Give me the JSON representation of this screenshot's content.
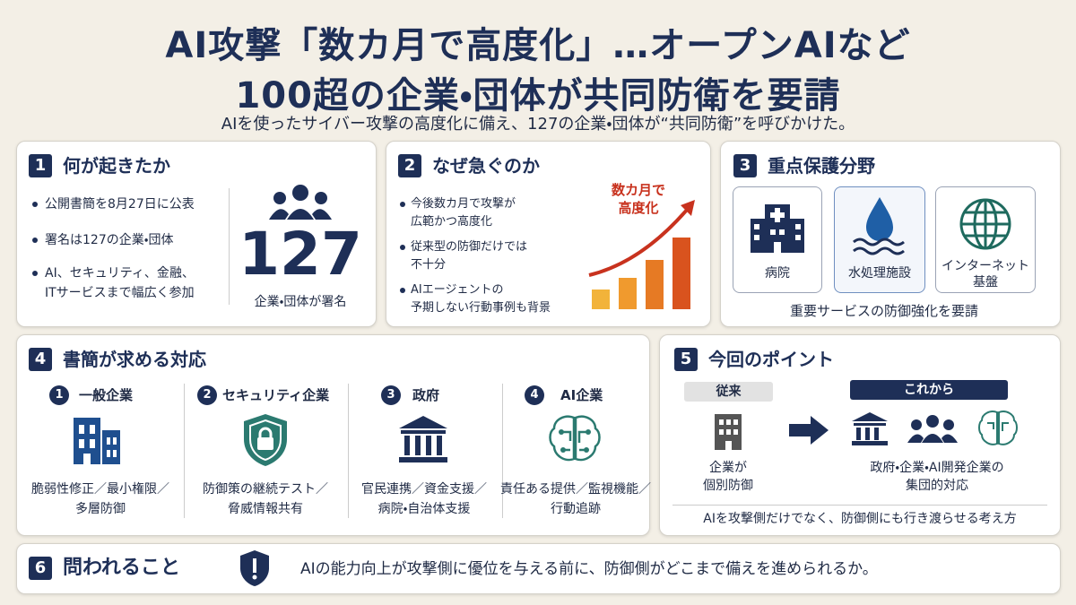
{
  "header": {
    "title": [
      "AI攻撃「数カ月で高度化」…オープンAIなど",
      "100超の企業・団体が共同防衛を要請"
    ],
    "subtitle": "AIを使ったサイバー攻撃の高度化に備え、127の企業・団体が“共同防衛”を呼びかけた。"
  },
  "sections": [
    {
      "number": "1",
      "heading": "何が起きたか",
      "bullets": [
        [
          "公開書簡を8月27日に公表"
        ],
        [
          "署名は127の企業・団体"
        ],
        [
          "AI、セキュリティ、金融、",
          "ITサービスまで幅広く参加"
        ]
      ],
      "stat": "127",
      "stat_caption": "企業・団体が署名"
    },
    {
      "number": "2",
      "heading": "なぜ急ぐのか",
      "bullets": [
        [
          "今後数カ月で攻撃が",
          "広範かつ高度化"
        ],
        [
          "従来型の防御だけでは",
          "不十分"
        ],
        [
          "AIエージェントの",
          "予期しない行動事例も背景"
        ]
      ],
      "chart_label": [
        "数カ月で",
        "高度化"
      ]
    },
    {
      "number": "3",
      "heading": "重点保護分野",
      "items": [
        [
          "病院"
        ],
        [
          "水処理施設"
        ],
        [
          "インターネット",
          "基盤"
        ]
      ],
      "note": "重要サービスの防御強化を要請"
    },
    {
      "number": "4",
      "heading": "書簡が求める対応",
      "items": [
        {
          "number": "1",
          "name": "一般企業",
          "text": [
            "脆弱性修正／最小権限／",
            "多層防御"
          ]
        },
        {
          "number": "2",
          "name": "セキュリティ企業",
          "text": [
            "防御策の継続テスト／",
            "脅威情報共有"
          ]
        },
        {
          "number": "3",
          "name": "政府",
          "text": [
            "官民連携／資金支援／",
            "病院・自治体支援"
          ]
        },
        {
          "number": "4",
          "name": "AI企業",
          "text": [
            "責任ある提供／監視機能／",
            "行動追跡"
          ]
        }
      ]
    },
    {
      "number": "5",
      "heading": "今回のポイント",
      "before_label": "従来",
      "before_text": [
        "企業が",
        "個別防御"
      ],
      "after_label": "これから",
      "after_text": [
        "政府・企業・AI開発企業の",
        "集団的対応"
      ],
      "note": "AIを攻撃側だけでなく、防御側にも行き渡らせる考え方"
    },
    {
      "number": "6",
      "heading": "問われること",
      "text": "AIの能力向上が攻撃側に優位を与える前に、防御側がどこまで備えを進められるか。"
    }
  ]
}
